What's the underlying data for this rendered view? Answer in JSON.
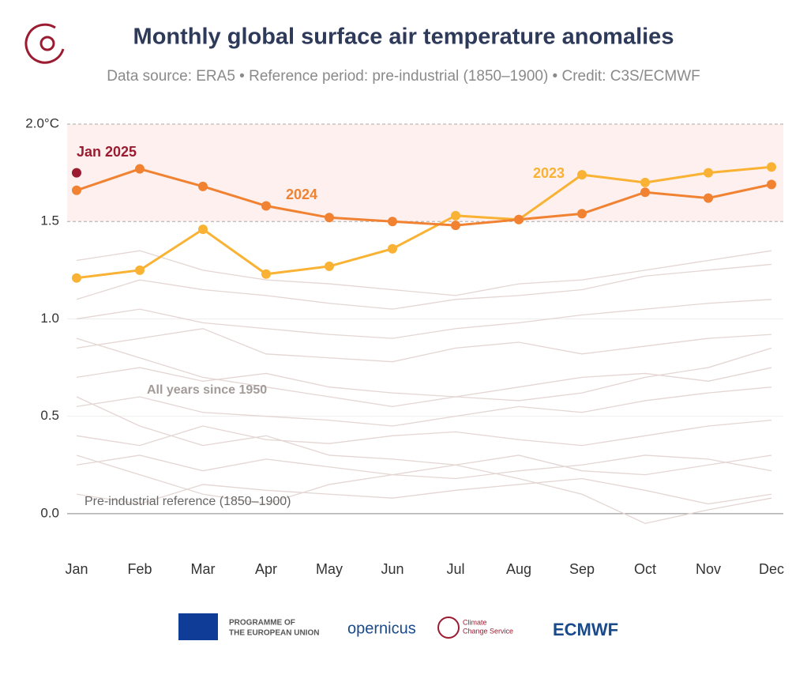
{
  "chart_data": {
    "type": "line",
    "title": "Monthly global surface air temperature anomalies",
    "subtitle": "Data source: ERA5 • Reference period: pre-industrial (1850–1900) • Credit: C3S/ECMWF",
    "categories": [
      "Jan",
      "Feb",
      "Mar",
      "Apr",
      "May",
      "Jun",
      "Jul",
      "Aug",
      "Sep",
      "Oct",
      "Nov",
      "Dec"
    ],
    "ylim": [
      -0.25,
      2.0
    ],
    "yticks": [
      {
        "value": 0,
        "label": "0.0"
      },
      0.5,
      {
        "value": 1.0,
        "label": "1.0"
      },
      1.5,
      {
        "value": 2.0,
        "label": "2.0°C"
      }
    ],
    "grid": true,
    "band": [
      1.5,
      2.0
    ],
    "series": [
      {
        "name": "2023",
        "color": "#f9b233",
        "values": [
          1.21,
          1.25,
          1.46,
          1.23,
          1.27,
          1.36,
          1.53,
          1.51,
          1.74,
          1.7,
          1.75,
          1.78
        ]
      },
      {
        "name": "2024",
        "color": "#f08232",
        "values": [
          1.66,
          1.77,
          1.68,
          1.58,
          1.52,
          1.5,
          1.48,
          1.51,
          1.54,
          1.65,
          1.62,
          1.69
        ]
      },
      {
        "name": "Jan 2025",
        "color": "#9b1b30",
        "values": [
          1.75,
          null,
          null,
          null,
          null,
          null,
          null,
          null,
          null,
          null,
          null,
          null
        ]
      }
    ],
    "background": {
      "label": "All years since 1950",
      "color": "#e3d6d3",
      "values": [
        [
          0.1,
          0.05,
          0.15,
          0.12,
          0.1,
          0.08,
          0.12,
          0.15,
          0.18,
          0.12,
          0.05,
          0.1
        ],
        [
          0.25,
          0.3,
          0.22,
          0.28,
          0.24,
          0.2,
          0.18,
          0.22,
          0.25,
          0.3,
          0.28,
          0.22
        ],
        [
          0.4,
          0.35,
          0.45,
          0.38,
          0.36,
          0.4,
          0.42,
          0.38,
          0.35,
          0.4,
          0.45,
          0.48
        ],
        [
          0.55,
          0.6,
          0.52,
          0.5,
          0.48,
          0.45,
          0.5,
          0.55,
          0.52,
          0.58,
          0.62,
          0.65
        ],
        [
          0.7,
          0.75,
          0.68,
          0.72,
          0.65,
          0.62,
          0.6,
          0.65,
          0.7,
          0.72,
          0.68,
          0.75
        ],
        [
          0.85,
          0.9,
          0.95,
          0.82,
          0.8,
          0.78,
          0.85,
          0.88,
          0.82,
          0.86,
          0.9,
          0.92
        ],
        [
          1.0,
          1.05,
          0.98,
          0.95,
          0.92,
          0.9,
          0.95,
          0.98,
          1.02,
          1.05,
          1.08,
          1.1
        ],
        [
          1.1,
          1.2,
          1.15,
          1.12,
          1.08,
          1.05,
          1.1,
          1.12,
          1.15,
          1.22,
          1.25,
          1.28
        ],
        [
          1.3,
          1.35,
          1.25,
          1.2,
          1.18,
          1.15,
          1.12,
          1.18,
          1.2,
          1.25,
          1.3,
          1.35
        ],
        [
          0.3,
          0.2,
          0.1,
          0.05,
          0.15,
          0.2,
          0.25,
          0.18,
          0.1,
          -0.05,
          0.02,
          0.08
        ],
        [
          0.6,
          0.45,
          0.35,
          0.4,
          0.3,
          0.28,
          0.25,
          0.3,
          0.22,
          0.2,
          0.25,
          0.3
        ],
        [
          0.9,
          0.8,
          0.7,
          0.65,
          0.6,
          0.55,
          0.6,
          0.58,
          0.62,
          0.7,
          0.75,
          0.85
        ]
      ]
    },
    "annotations": {
      "reference": "Pre-industrial reference (1850–1900)"
    },
    "footer": [
      "PROGRAMME OF",
      "THE EUROPEAN UNION",
      "opernicus",
      "Climate",
      "Change Service",
      "ECMWF"
    ]
  }
}
